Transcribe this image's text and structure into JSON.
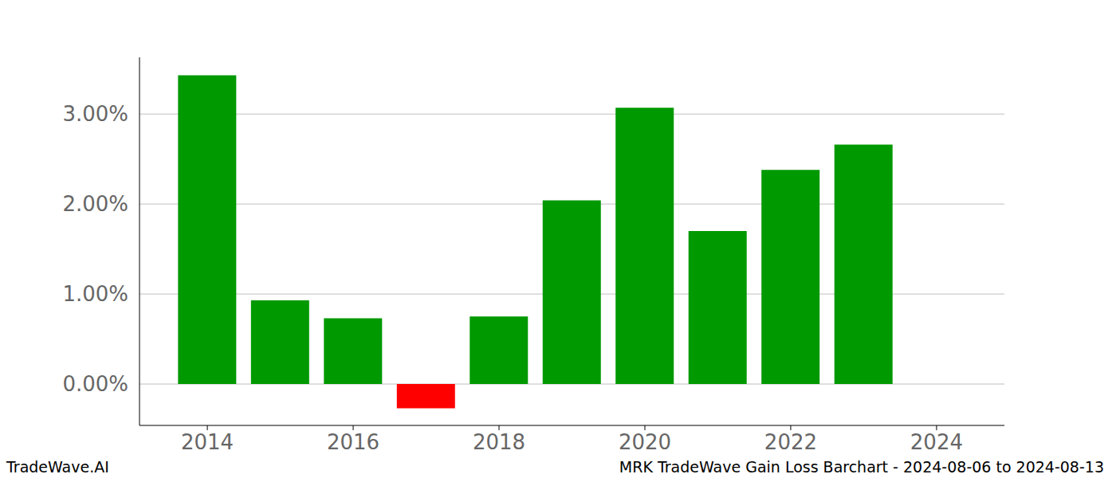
{
  "chart_data": {
    "type": "bar",
    "title": "MRK TradeWave Gain Loss Barchart - 2024-08-06 to 2024-08-13",
    "annotations": [
      "TradeWave.AI"
    ],
    "x": [
      2014,
      2015,
      2016,
      2017,
      2018,
      2019,
      2020,
      2021,
      2022,
      2023
    ],
    "values": [
      3.43,
      0.93,
      0.73,
      -0.27,
      0.75,
      2.04,
      3.07,
      1.7,
      2.38,
      2.66
    ],
    "colors": [
      "#009900",
      "#009900",
      "#009900",
      "#ff0000",
      "#009900",
      "#009900",
      "#009900",
      "#009900",
      "#009900",
      "#009900"
    ],
    "xlim": [
      2013.07,
      2024.93
    ],
    "xticks": [
      2014,
      2016,
      2018,
      2020,
      2022,
      2024
    ],
    "ylim": [
      -0.46,
      3.63
    ],
    "yticks": [
      {
        "value": 0,
        "label": "0.00%"
      },
      {
        "value": 1,
        "label": "1.00%"
      },
      {
        "value": 2,
        "label": "2.00%"
      },
      {
        "value": 3,
        "label": "3.00%"
      }
    ],
    "grid": true
  }
}
